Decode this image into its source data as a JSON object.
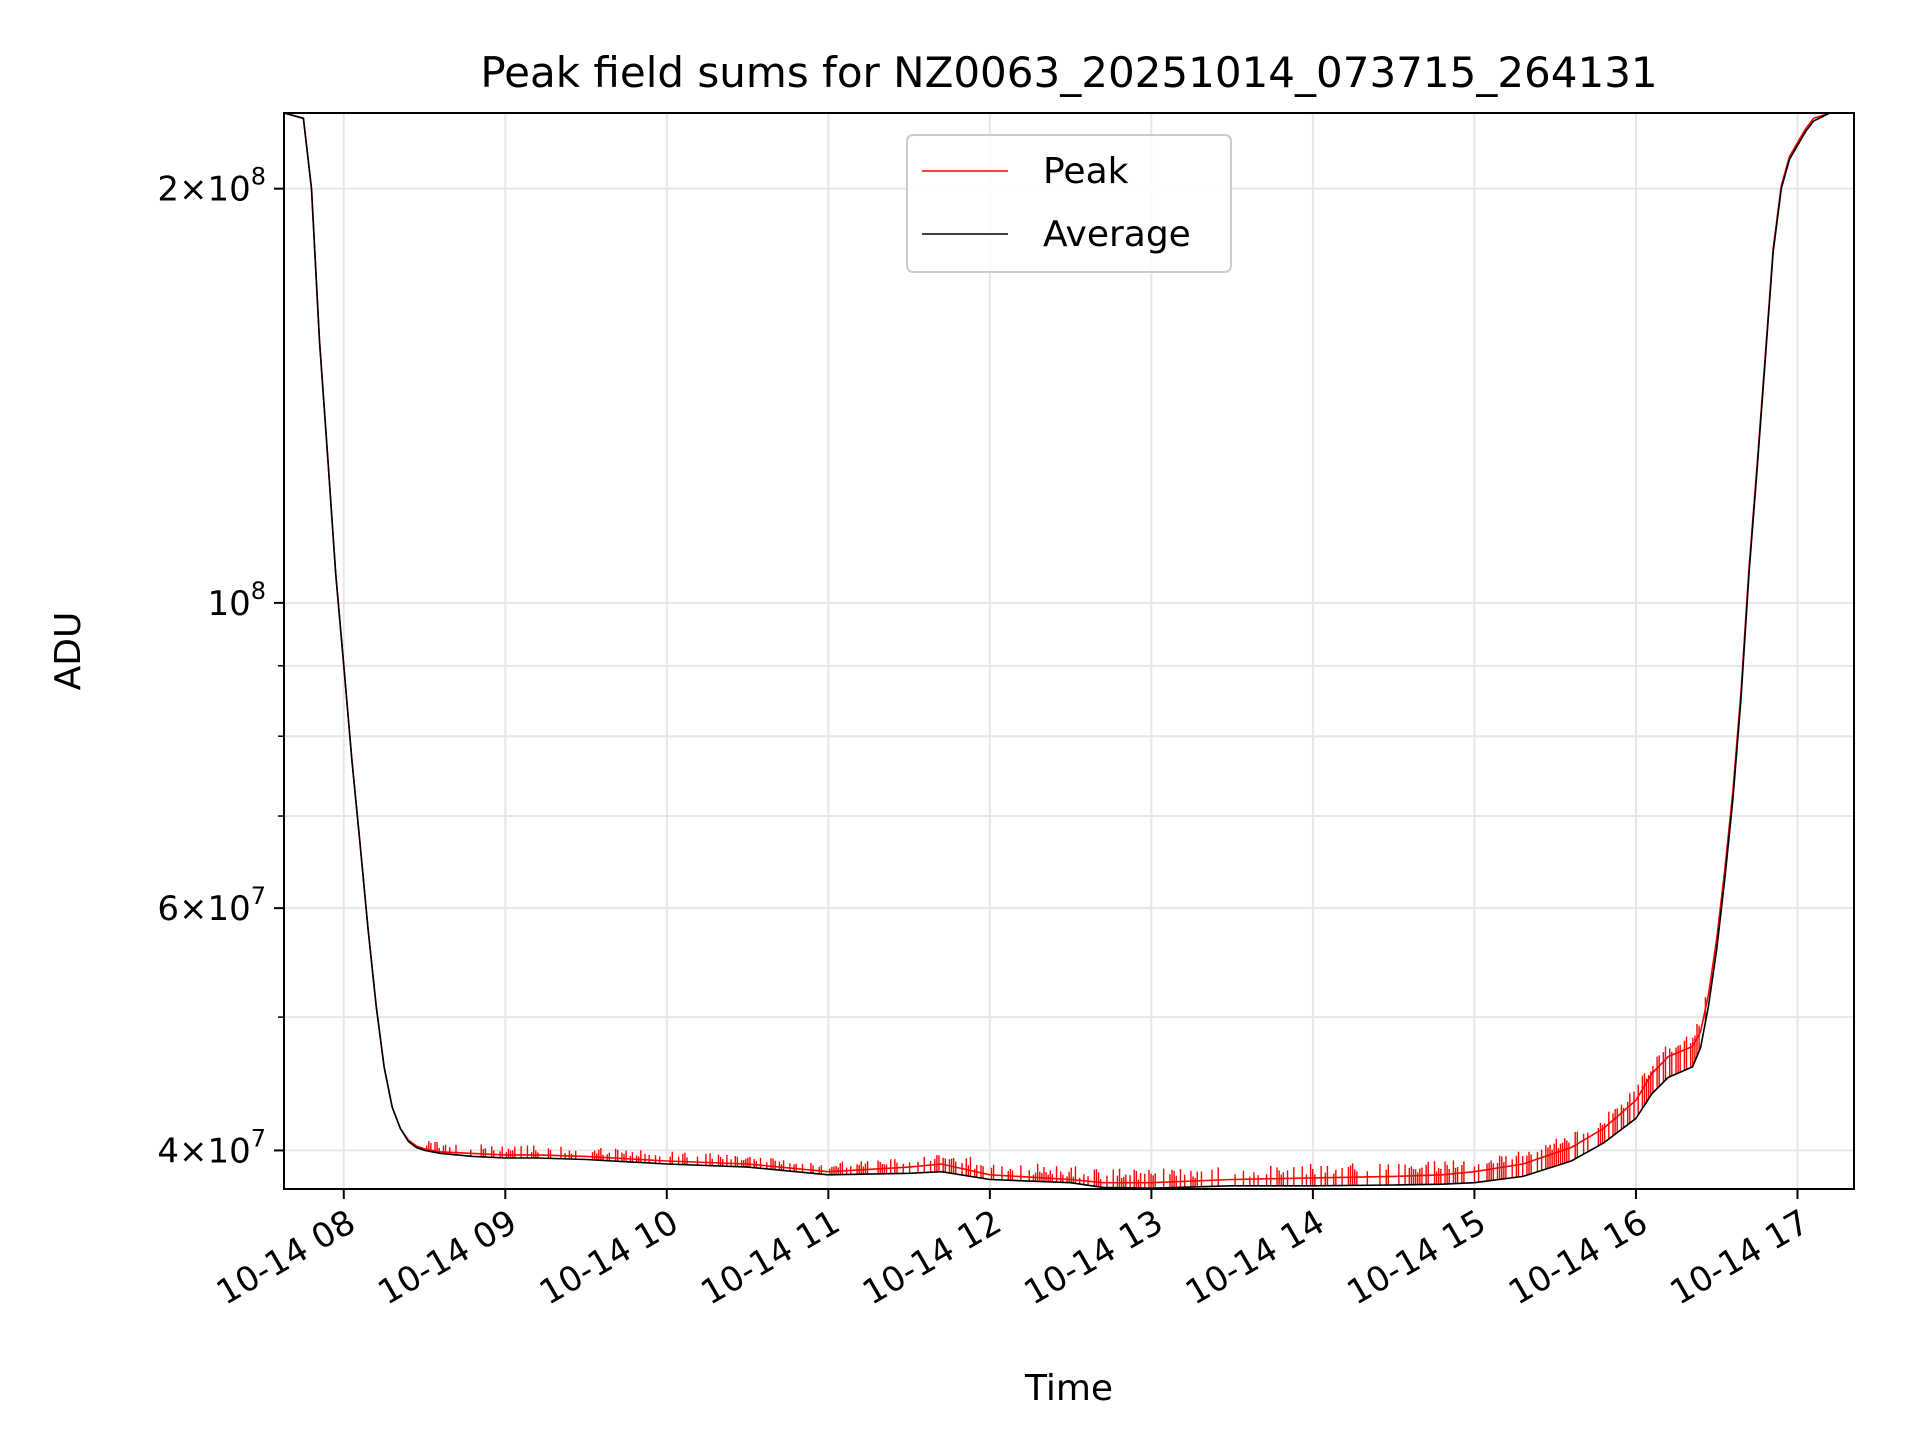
{
  "chart_data": {
    "type": "line",
    "title": "Peak field sums for NZ0063_20251014_073715_264131",
    "xlabel": "Time",
    "ylabel": "ADU",
    "yscale": "log",
    "grid": true,
    "legend_position": "upper center",
    "xlim": [
      7.63,
      17.35
    ],
    "ylim": [
      37500000,
      227000000
    ],
    "x_ticks": [
      {
        "value": 8,
        "label": "10-14 08"
      },
      {
        "value": 9,
        "label": "10-14 09"
      },
      {
        "value": 10,
        "label": "10-14 10"
      },
      {
        "value": 11,
        "label": "10-14 11"
      },
      {
        "value": 12,
        "label": "10-14 12"
      },
      {
        "value": 13,
        "label": "10-14 13"
      },
      {
        "value": 14,
        "label": "10-14 14"
      },
      {
        "value": 15,
        "label": "10-14 15"
      },
      {
        "value": 16,
        "label": "10-14 16"
      },
      {
        "value": 17,
        "label": "10-14 17"
      }
    ],
    "y_ticks": [
      {
        "value": 40000000,
        "base": "4",
        "exp": "7"
      },
      {
        "value": 60000000,
        "base": "6",
        "exp": "7"
      },
      {
        "value": 100000000,
        "base": "",
        "exp": "8"
      },
      {
        "value": 200000000,
        "base": "2",
        "exp": "8"
      }
    ],
    "y_minor_ticks": [
      50000000,
      70000000,
      80000000,
      90000000
    ],
    "series": [
      {
        "name": "Average",
        "color": "#000000",
        "x": [
          7.63,
          7.75,
          7.8,
          7.85,
          7.9,
          7.95,
          8.0,
          8.05,
          8.1,
          8.15,
          8.2,
          8.25,
          8.3,
          8.35,
          8.4,
          8.45,
          8.5,
          8.6,
          8.8,
          9.0,
          9.2,
          9.5,
          10.0,
          10.5,
          11.0,
          11.5,
          11.7,
          12.0,
          12.5,
          12.7,
          13.0,
          13.5,
          14.0,
          14.5,
          14.8,
          15.0,
          15.3,
          15.6,
          15.8,
          16.0,
          16.1,
          16.2,
          16.35,
          16.4,
          16.45,
          16.5,
          16.55,
          16.6,
          16.65,
          16.7,
          16.75,
          16.8,
          16.85,
          16.9,
          16.95,
          17.0,
          17.05,
          17.1,
          17.2,
          17.35
        ],
        "values": [
          227000000,
          225000000,
          200000000,
          155000000,
          128000000,
          105000000,
          90000000,
          77000000,
          67000000,
          58000000,
          51000000,
          46000000,
          43000000,
          41500000,
          40600000,
          40200000,
          40000000,
          39800000,
          39600000,
          39500000,
          39500000,
          39400000,
          39100000,
          38900000,
          38400000,
          38500000,
          38600000,
          38100000,
          37900000,
          37600000,
          37550000,
          37700000,
          37700000,
          37750000,
          37800000,
          37900000,
          38300000,
          39300000,
          40500000,
          42200000,
          44000000,
          45200000,
          46000000,
          47500000,
          51000000,
          56000000,
          63000000,
          72000000,
          85000000,
          105000000,
          125000000,
          150000000,
          180000000,
          200000000,
          210000000,
          215000000,
          220000000,
          224000000,
          227000000,
          227000000
        ]
      },
      {
        "name": "Peak",
        "color": "#ff0000",
        "x": [
          7.63,
          7.75,
          7.8,
          7.85,
          7.9,
          7.95,
          8.0,
          8.05,
          8.1,
          8.15,
          8.2,
          8.25,
          8.3,
          8.35,
          8.4,
          8.45,
          8.5,
          8.6,
          8.8,
          9.0,
          9.2,
          9.5,
          10.0,
          10.5,
          11.0,
          11.5,
          11.7,
          12.0,
          12.5,
          12.7,
          13.0,
          13.5,
          14.0,
          14.5,
          14.8,
          15.0,
          15.3,
          15.6,
          15.8,
          16.0,
          16.1,
          16.2,
          16.35,
          16.4,
          16.45,
          16.5,
          16.55,
          16.6,
          16.65,
          16.7,
          16.75,
          16.8,
          16.85,
          16.9,
          16.95,
          17.0,
          17.05,
          17.1,
          17.2,
          17.35
        ],
        "values": [
          227000000,
          225000000,
          200000000,
          155000000,
          128000000,
          105000000,
          90000000,
          77000000,
          67000000,
          58000000,
          51000000,
          46000000,
          43000000,
          41500000,
          40700000,
          40300000,
          40100000,
          39900000,
          39800000,
          39700000,
          39700000,
          39600000,
          39300000,
          39100000,
          38600000,
          38900000,
          39100000,
          38400000,
          38100000,
          37900000,
          37900000,
          38100000,
          38200000,
          38300000,
          38400000,
          38600000,
          39100000,
          40200000,
          41500000,
          43500000,
          45500000,
          46800000,
          47600000,
          48800000,
          52000000,
          57000000,
          64000000,
          73000000,
          86000000,
          106000000,
          126000000,
          151000000,
          181000000,
          201000000,
          211000000,
          216000000,
          221000000,
          225000000,
          227000000,
          227000000
        ]
      }
    ],
    "legend": [
      {
        "label": "Peak",
        "color": "#ff0000"
      },
      {
        "label": "Average",
        "color": "#000000"
      }
    ]
  }
}
